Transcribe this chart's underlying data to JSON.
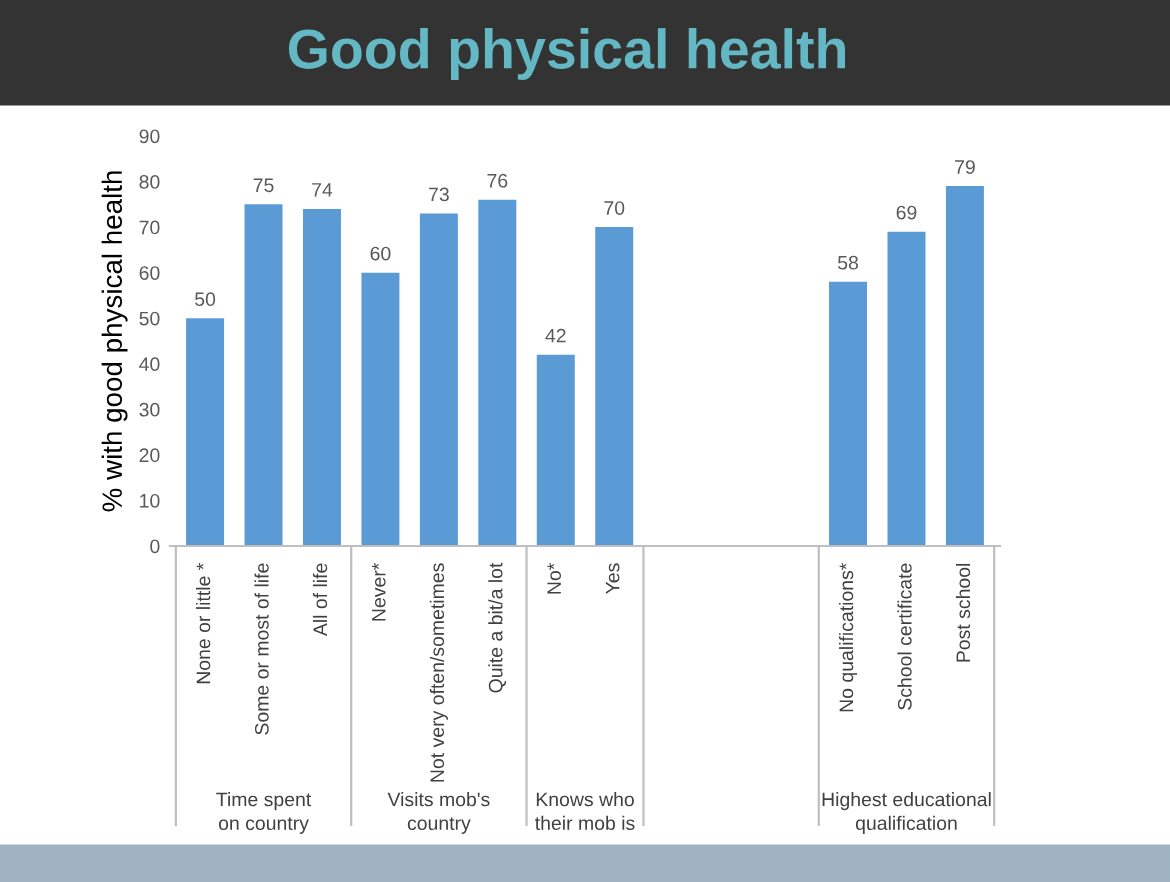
{
  "chart_data": {
    "type": "bar",
    "title": "Good physical health",
    "ylabel": "% with good physical health",
    "categories": [
      "None or little *",
      "Some or most of life",
      "All of life",
      "Never*",
      "Not very often/sometimes",
      "Quite a bit/a lot",
      "No*",
      "Yes",
      null,
      null,
      null,
      "No qualifications*",
      "School certificate",
      "Post school"
    ],
    "values": [
      50,
      75,
      74,
      60,
      73,
      76,
      42,
      70,
      null,
      null,
      null,
      58,
      69,
      79
    ],
    "color": "#5b9bd5",
    "ylim": [
      0,
      90
    ],
    "yticks": [
      0,
      10,
      20,
      30,
      40,
      50,
      60,
      70,
      80,
      90
    ],
    "grid": false,
    "data_labels": true,
    "annotations": [
      "Time spent on country",
      "Visits mob's country",
      "Knows who their mob is",
      "Highest educational qualification"
    ]
  }
}
